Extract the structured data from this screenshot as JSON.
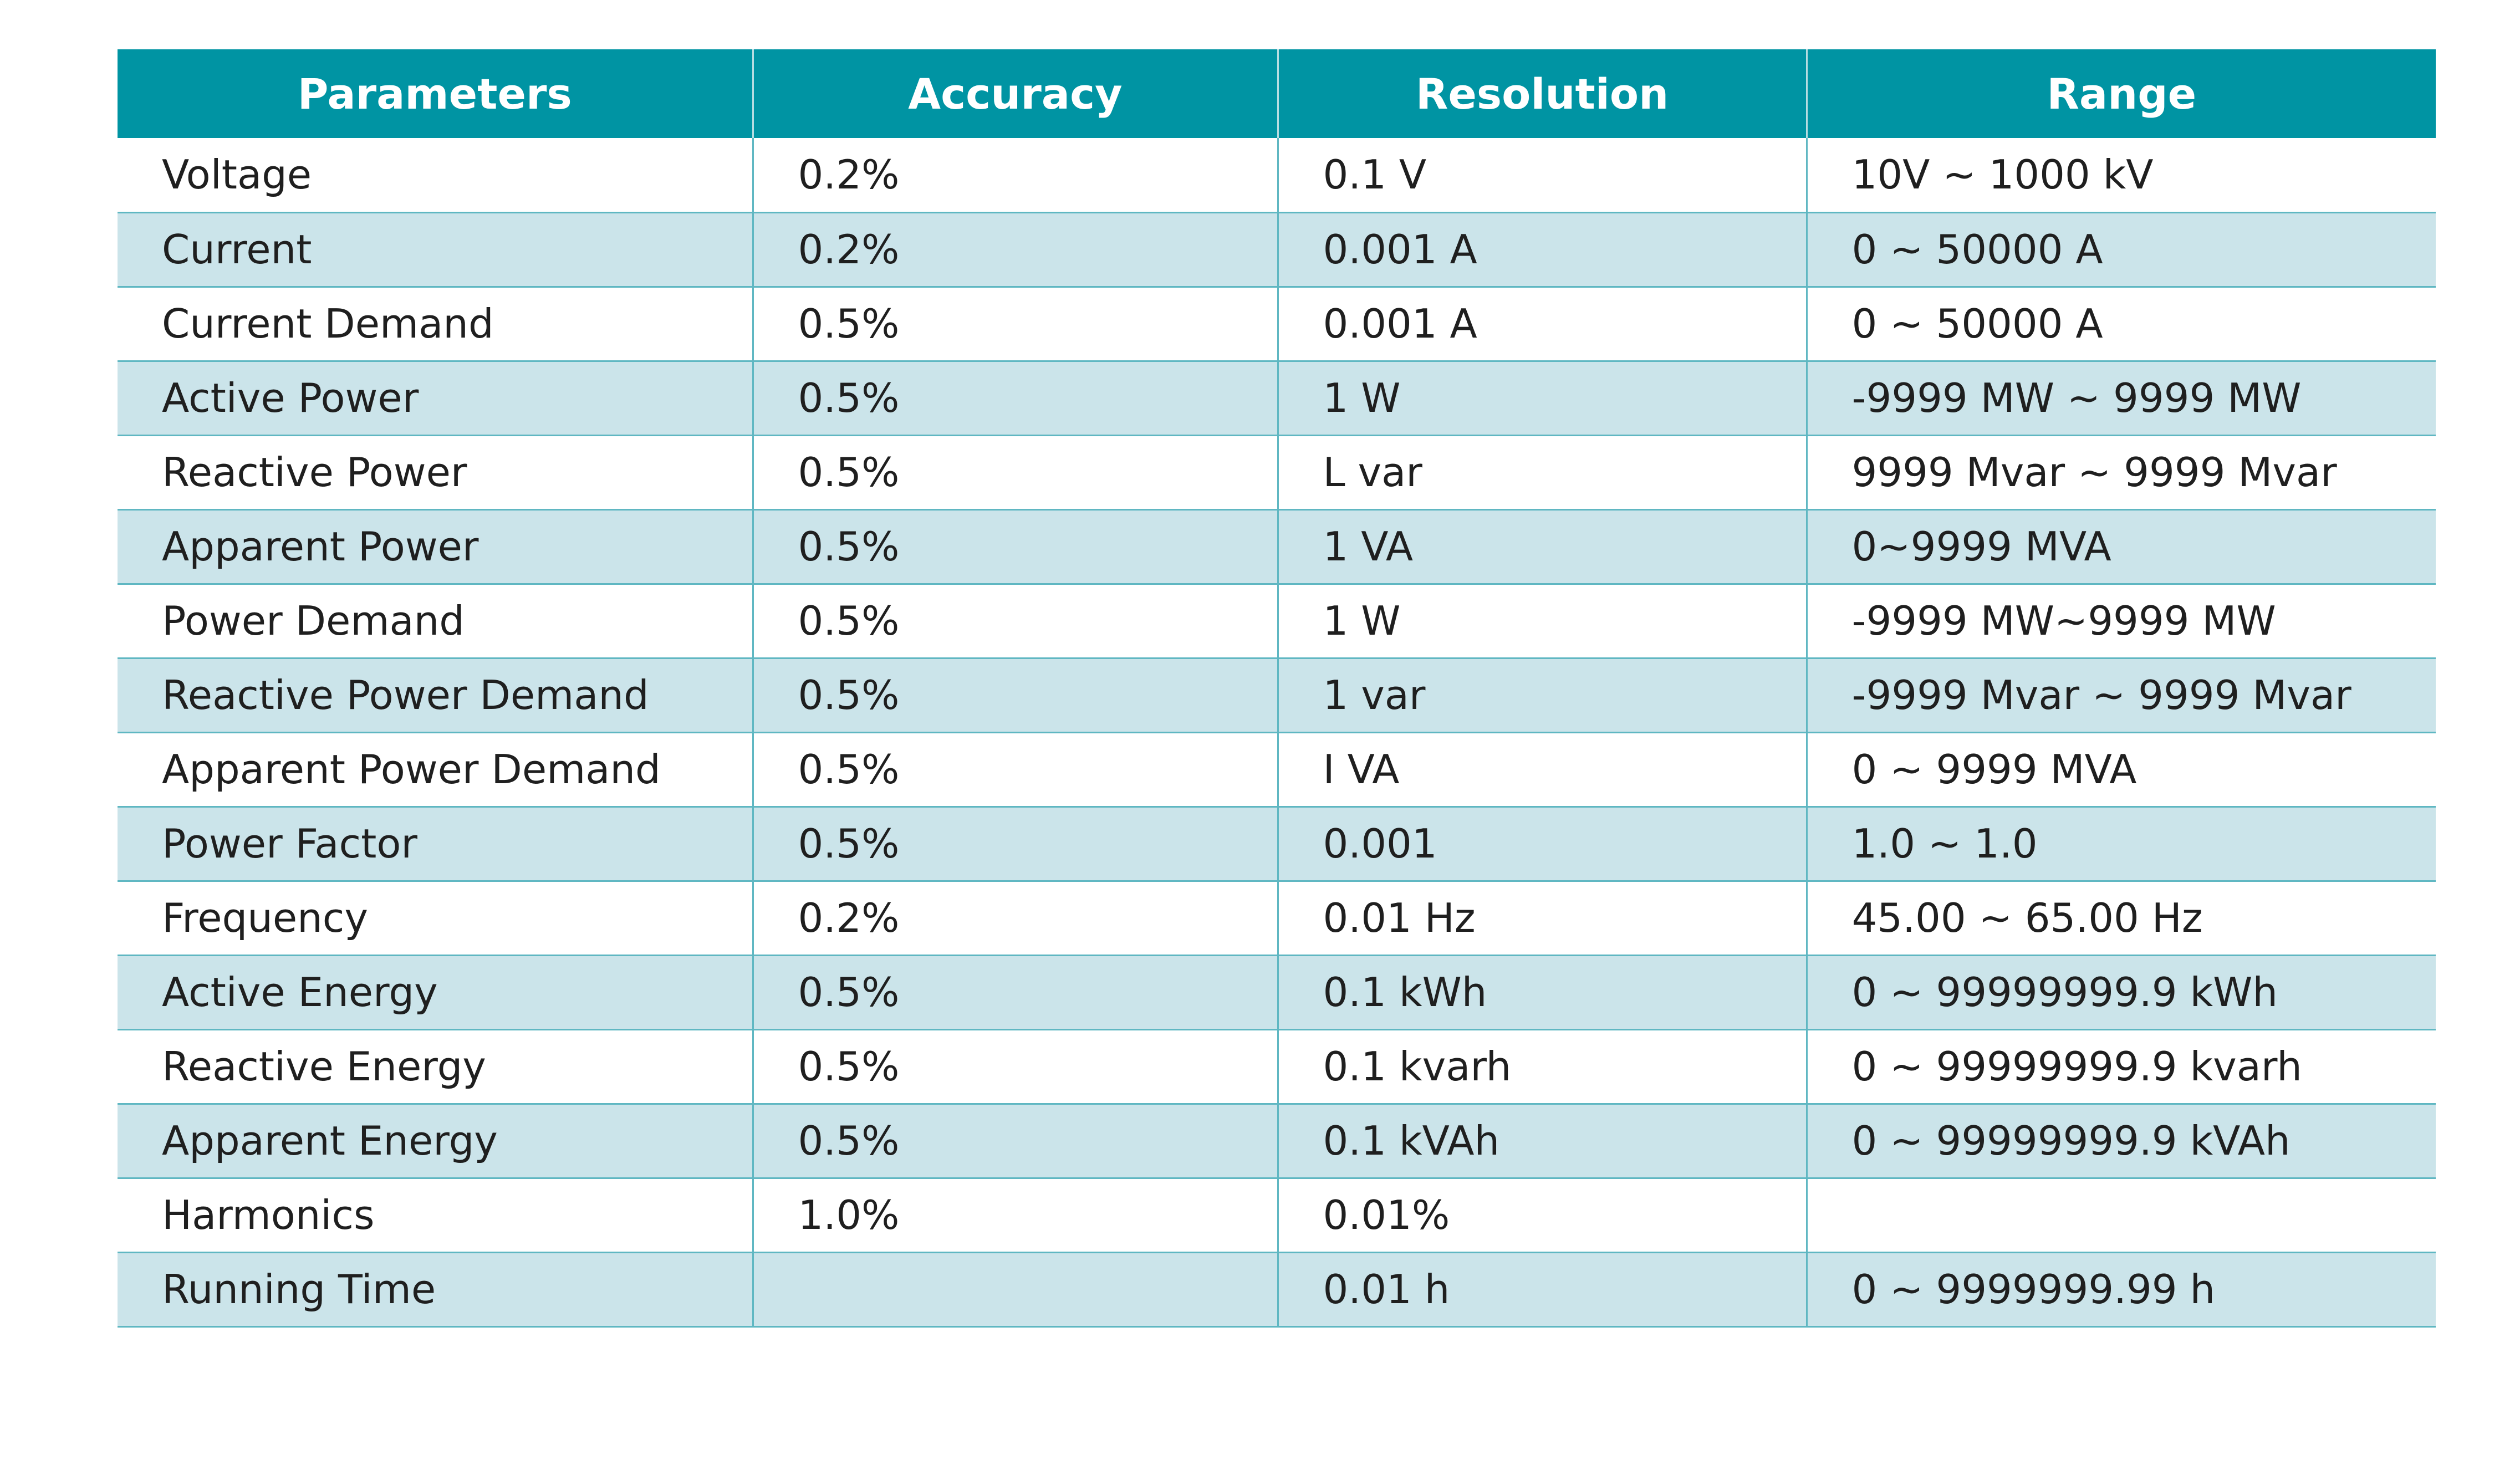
{
  "table": {
    "headers": [
      "Parameters",
      "Accuracy",
      "Resolution",
      "Range"
    ],
    "rows": [
      [
        "Voltage",
        "0.2%",
        "0.1 V",
        "10V ~ 1000 kV"
      ],
      [
        "Current",
        "0.2%",
        "0.001 A",
        "0 ~ 50000 A"
      ],
      [
        "Current Demand",
        "0.5%",
        "0.001 A",
        "0 ~ 50000 A"
      ],
      [
        "Active Power",
        "0.5%",
        "1 W",
        "-9999 MW ~ 9999 MW"
      ],
      [
        "Reactive Power",
        "0.5%",
        "L var",
        "9999 Mvar ~ 9999 Mvar"
      ],
      [
        "Apparent Power",
        "0.5%",
        "1 VA",
        "0~9999 MVA"
      ],
      [
        "Power Demand",
        "0.5%",
        "1 W",
        "-9999 MW~9999 MW"
      ],
      [
        "Reactive Power Demand",
        "0.5%",
        "1 var",
        "-9999 Mvar ~ 9999 Mvar"
      ],
      [
        "Apparent Power Demand",
        "0.5%",
        "I VA",
        "0 ~ 9999 MVA"
      ],
      [
        "Power Factor",
        "0.5%",
        "0.001",
        "1.0 ~ 1.0"
      ],
      [
        "Frequency",
        "0.2%",
        "0.01 Hz",
        "45.00 ~ 65.00 Hz"
      ],
      [
        "Active Energy",
        "0.5%",
        "0.1 kWh",
        "0 ~ 99999999.9 kWh"
      ],
      [
        "Reactive Energy",
        "0.5%",
        "0.1 kvarh",
        "0 ~ 99999999.9 kvarh"
      ],
      [
        "Apparent Energy",
        "0.5%",
        "0.1 kVAh",
        "0 ~ 99999999.9 kVAh"
      ],
      [
        "Harmonics",
        "1.0%",
        "0.01%",
        ""
      ],
      [
        "Running Time",
        "",
        "0.01 h",
        "0 ~ 9999999.99 h"
      ]
    ]
  },
  "colors": {
    "header_bg": "#0094a3",
    "header_text": "#ffffff",
    "stripe_bg": "#cbe4ea",
    "row_border": "#5fb7c2"
  }
}
